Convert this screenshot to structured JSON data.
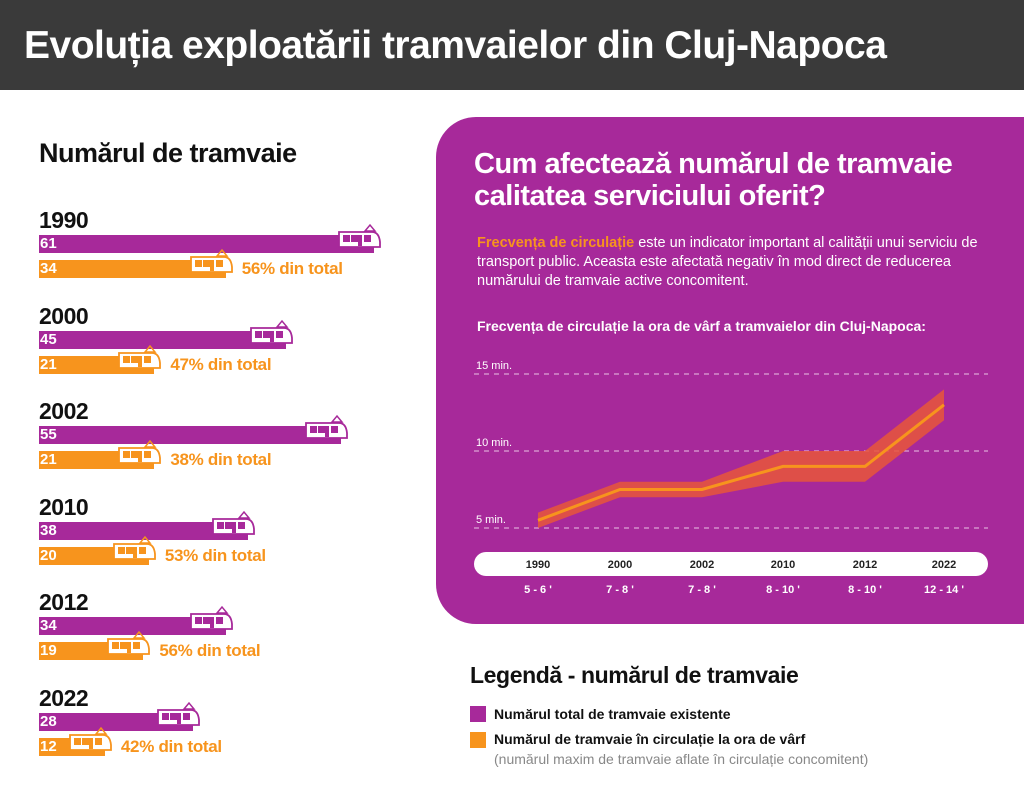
{
  "header": {
    "title": "Evoluția exploatării tramvaielor din Cluj-Napoca"
  },
  "left": {
    "title": "Numărul de tramvaie",
    "rows": [
      {
        "year": "1990",
        "total": 61,
        "active": 34,
        "pct_label": "56% din total"
      },
      {
        "year": "2000",
        "total": 45,
        "active": 21,
        "pct_label": "47% din total"
      },
      {
        "year": "2002",
        "total": 55,
        "active": 21,
        "pct_label": "38% din total"
      },
      {
        "year": "2010",
        "total": 38,
        "active": 20,
        "pct_label": "53% din total"
      },
      {
        "year": "2012",
        "total": 34,
        "active": 19,
        "pct_label": "56% din total"
      },
      {
        "year": "2022",
        "total": 28,
        "active": 12,
        "pct_label": "42% din total"
      }
    ]
  },
  "panel": {
    "title": "Cum afectează numărul de tramvaie calitatea serviciului oferit?",
    "text_highlight": "Frecvența de circulație",
    "text_rest": " este un indicator important al calității unui serviciu de transport public. Aceasta este afectată negativ în mod direct de reducerea numărului de tramvaie active concomitent.",
    "chart_title": "Frecvența de circulație la ora de vârf a tramvaielor din Cluj-Napoca:"
  },
  "legend": {
    "title": "Legendă - numărul de tramvaie",
    "total_label": "Numărul total de tramvaie existente",
    "active_label": "Numărul de tramvaie în circulație la ora de vârf",
    "active_sub": "(numărul maxim de tramvaie aflate în circulație concomitent)"
  },
  "colors": {
    "purple": "#a7299a",
    "orange": "#f7941d",
    "dark": "#3a3a3a"
  },
  "chart_data": [
    {
      "type": "bar",
      "title": "Numărul de tramvaie",
      "categories": [
        "1990",
        "2000",
        "2002",
        "2010",
        "2012",
        "2022"
      ],
      "series": [
        {
          "name": "Numărul total de tramvaie existente",
          "values": [
            61,
            45,
            55,
            38,
            34,
            28
          ]
        },
        {
          "name": "Numărul de tramvaie în circulație la ora de vârf",
          "values": [
            34,
            21,
            21,
            20,
            19,
            12
          ]
        }
      ]
    },
    {
      "type": "area",
      "title": "Frecvența de circulație la ora de vârf a tramvaielor din Cluj-Napoca:",
      "categories": [
        "1990",
        "2000",
        "2002",
        "2010",
        "2012",
        "2022"
      ],
      "range_labels": [
        "5 - 6 '",
        "7 - 8 '",
        "7 - 8 '",
        "8 - 10 '",
        "8 - 10 '",
        "12 - 14 '"
      ],
      "low": [
        5,
        7,
        7,
        8,
        8,
        12
      ],
      "high": [
        6,
        8,
        8,
        10,
        10,
        14
      ],
      "mid": [
        5.5,
        7.5,
        7.5,
        9,
        9,
        13
      ],
      "y_ticks": [
        5,
        10,
        15
      ],
      "y_tick_labels": [
        "5 min.",
        "10 min.",
        "15 min."
      ],
      "ylim": [
        5,
        15
      ],
      "grid": true
    }
  ]
}
